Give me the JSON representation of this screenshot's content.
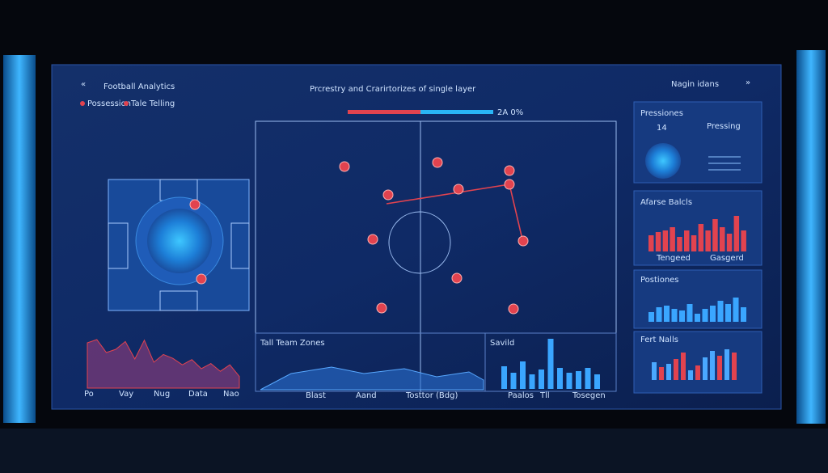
{
  "header": {
    "title": "Football Analytics",
    "center_title": "Prcrestry and Crarirtorizes of single layer",
    "possession_text": "2A 0%",
    "right_title": "Nagin idans"
  },
  "legend": [
    "Possession",
    "Tale Telling"
  ],
  "possession_split": [
    50,
    50
  ],
  "left_trend": {
    "values": [
      70,
      75,
      55,
      60,
      72,
      45,
      74,
      40,
      52,
      46,
      36,
      44,
      30,
      38,
      26,
      36,
      18
    ],
    "x_labels": [
      "Po",
      "Vay",
      "Nug",
      "Data",
      "Nao"
    ]
  },
  "zones": {
    "title": "Tall Team Zones",
    "x_labels": [
      "Blast",
      "Aand",
      "Tosttor (Bdg)"
    ]
  },
  "savild": {
    "title": "Savild",
    "values": [
      28,
      20,
      34,
      18,
      24,
      62,
      26,
      20,
      22,
      26,
      18
    ],
    "x_labels": [
      "Paalos",
      "Tll",
      "Tosegen"
    ]
  },
  "panels": {
    "pressing": {
      "title": "Pressiones",
      "value": "14",
      "label": "Pressing"
    },
    "attack": {
      "title": "Afarse Balcls",
      "values": [
        20,
        24,
        26,
        30,
        18,
        26,
        20,
        34,
        26,
        40,
        30,
        22,
        44,
        26
      ],
      "x_labels": [
        "Tengeed",
        "Gasgerd"
      ]
    },
    "positions": {
      "title": "Postiones",
      "values": [
        12,
        18,
        20,
        16,
        14,
        22,
        10,
        16,
        20,
        26,
        22,
        30,
        18
      ]
    },
    "fert": {
      "title": "Fert Nalls",
      "values": [
        22,
        16,
        20,
        26,
        34,
        12,
        18,
        28,
        36,
        30,
        38,
        34
      ],
      "colors": [
        "#4aa8ff",
        "#e2434f",
        "#4aa8ff",
        "#e2434f",
        "#e2434f",
        "#4aa8ff",
        "#e2434f",
        "#4aa8ff",
        "#4aa8ff",
        "#e2434f",
        "#4aa8ff",
        "#e2434f"
      ]
    }
  }
}
